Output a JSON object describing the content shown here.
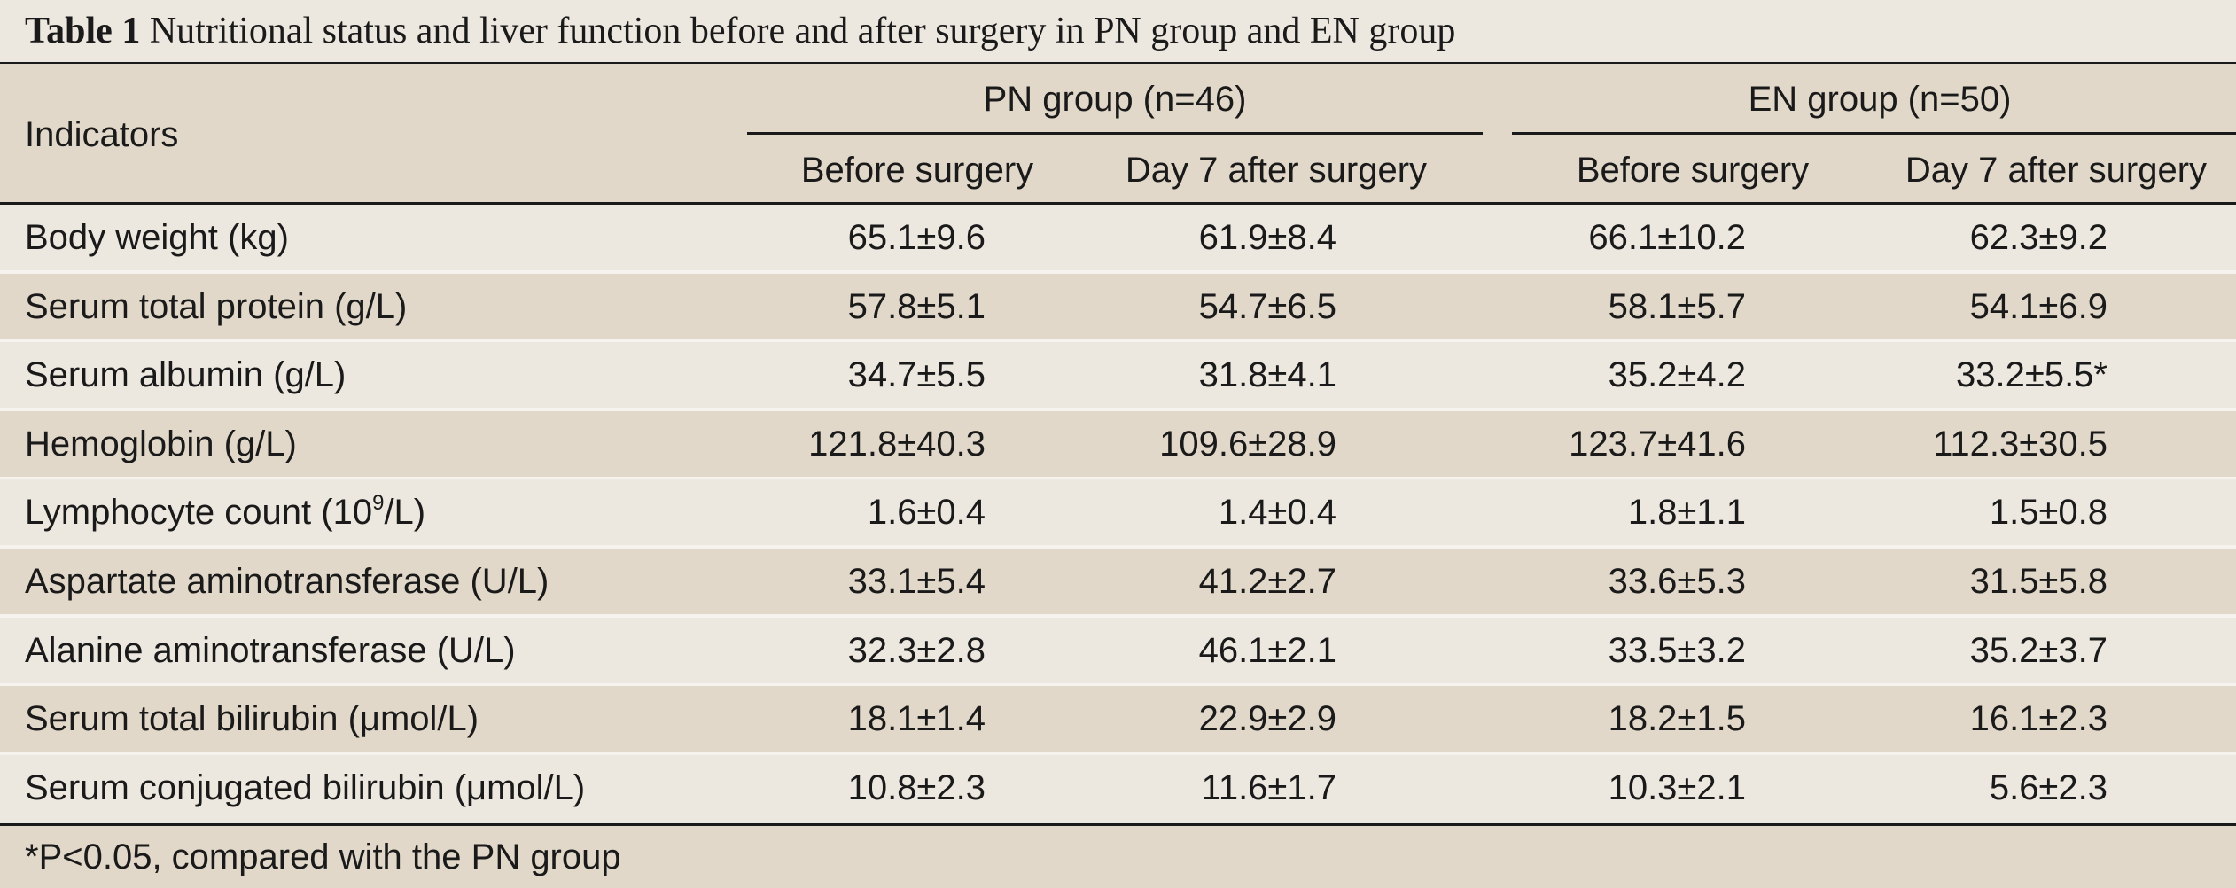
{
  "caption": {
    "label": "Table 1",
    "text": "Nutritional status and liver function before and after surgery in PN group and EN group"
  },
  "header": {
    "indicators": "Indicators",
    "pn_group": "PN group (n=46)",
    "en_group": "EN group (n=50)",
    "pn_before": "Before surgery",
    "pn_after": "Day 7 after surgery",
    "en_before": "Before surgery",
    "en_after": "Day 7 after surgery"
  },
  "rows": [
    {
      "indicator": "Body weight (kg)",
      "pn_before": "65.1±9.6",
      "pn_after": "61.9±8.4",
      "en_before": "66.1±10.2",
      "en_after": "62.3±9.2"
    },
    {
      "indicator": "Serum total protein (g/L)",
      "pn_before": "57.8±5.1",
      "pn_after": "54.7±6.5",
      "en_before": "58.1±5.7",
      "en_after": "54.1±6.9"
    },
    {
      "indicator": "Serum albumin (g/L)",
      "pn_before": "34.7±5.5",
      "pn_after": "31.8±4.1",
      "en_before": "35.2±4.2",
      "en_after": "33.2±5.5*"
    },
    {
      "indicator": "Hemoglobin (g/L)",
      "pn_before": "121.8±40.3",
      "pn_after": "109.6±28.9",
      "en_before": "123.7±41.6",
      "en_after": "112.3±30.5"
    },
    {
      "indicator": "Lymphocyte count (10",
      "indicator_sup": "9",
      "indicator_suffix": "/L)",
      "pn_before": "1.6±0.4",
      "pn_after": "1.4±0.4",
      "en_before": "1.8±1.1",
      "en_after": "1.5±0.8"
    },
    {
      "indicator": "Aspartate aminotransferase (U/L)",
      "pn_before": "33.1±5.4",
      "pn_after": "41.2±2.7",
      "en_before": "33.6±5.3",
      "en_after": "31.5±5.8"
    },
    {
      "indicator": "Alanine aminotransferase (U/L)",
      "pn_before": "32.3±2.8",
      "pn_after": "46.1±2.1",
      "en_before": "33.5±3.2",
      "en_after": "35.2±3.7"
    },
    {
      "indicator": "Serum total bilirubin (μmol/L)",
      "pn_before": "18.1±1.4",
      "pn_after": "22.9±2.9",
      "en_before": "18.2±1.5",
      "en_after": "16.1±2.3"
    },
    {
      "indicator": "Serum conjugated bilirubin (μmol/L)",
      "pn_before": "10.8±2.3",
      "pn_after": "11.6±1.7",
      "en_before": "10.3±2.1",
      "en_after": "5.6±2.3"
    }
  ],
  "footnote": "*P<0.05, compared with the PN group"
}
